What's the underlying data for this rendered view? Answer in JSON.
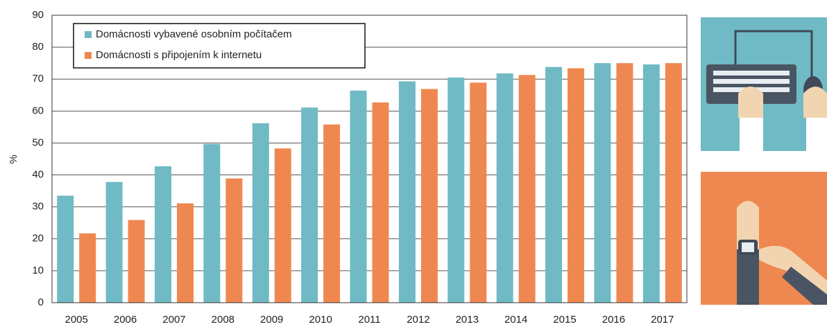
{
  "chart_data": {
    "type": "bar",
    "y_label": "%",
    "categories": [
      "2005",
      "2006",
      "2007",
      "2008",
      "2009",
      "2010",
      "2011",
      "2012",
      "2013",
      "2014",
      "2015",
      "2016",
      "2017"
    ],
    "series": [
      {
        "name": "Domácnosti vybavené osobním počítačem",
        "color": "#6fbac4",
        "values": [
          33.5,
          37.8,
          42.7,
          49.7,
          56.2,
          61.1,
          66.4,
          69.3,
          70.5,
          71.8,
          73.8,
          75.0,
          74.6
        ]
      },
      {
        "name": "Domácnosti s připojením k internetu",
        "color": "#ef8850",
        "values": [
          21.7,
          25.9,
          31.1,
          38.9,
          48.3,
          55.8,
          62.7,
          66.9,
          68.9,
          71.3,
          73.4,
          75.0,
          75.0
        ]
      }
    ],
    "ylim": [
      0,
      90
    ],
    "yticks": [
      0,
      10,
      20,
      30,
      40,
      50,
      60,
      70,
      80,
      90
    ],
    "grid": true
  }
}
